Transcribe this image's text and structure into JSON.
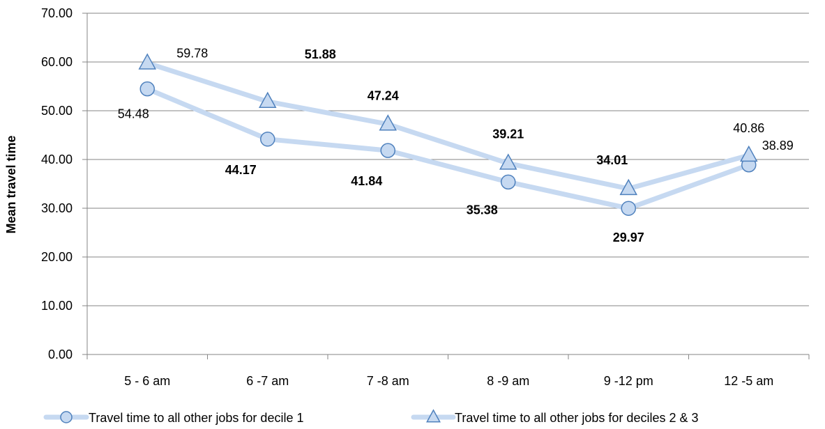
{
  "chart_data": {
    "type": "line",
    "categories": [
      "5 - 6 am",
      "6 -7 am",
      "7 -8 am",
      "8 -9 am",
      "9 -12 pm",
      "12 -5 am"
    ],
    "series": [
      {
        "name": "Travel time to all other  jobs for decile 1",
        "marker": "circle",
        "values": [
          54.48,
          44.17,
          41.84,
          35.38,
          29.97,
          38.89
        ],
        "labels": [
          "54.48",
          "44.17",
          "41.84",
          "35.38",
          "29.97",
          "38.89"
        ],
        "label_bold": [
          false,
          true,
          true,
          true,
          true,
          false
        ]
      },
      {
        "name": "Travel time to all other jobs for deciles 2 & 3",
        "marker": "triangle",
        "values": [
          59.78,
          51.88,
          47.24,
          39.21,
          34.01,
          40.86
        ],
        "labels": [
          "59.78",
          "51.88",
          "47.24",
          "39.21",
          "34.01",
          "40.86"
        ],
        "label_bold": [
          false,
          true,
          true,
          true,
          true,
          false
        ]
      }
    ],
    "ylabel": "Mean travel time",
    "xlabel": "",
    "ylim": [
      0,
      70
    ],
    "yticks": [
      "0.00",
      "10.00",
      "20.00",
      "30.00",
      "40.00",
      "50.00",
      "60.00",
      "70.00"
    ],
    "grid": true,
    "legend_position": "bottom",
    "colors": {
      "line": "#c6d9f1",
      "marker_fill": "#c6d9f1",
      "marker_stroke": "#4f81bd",
      "grid": "#868686"
    }
  }
}
